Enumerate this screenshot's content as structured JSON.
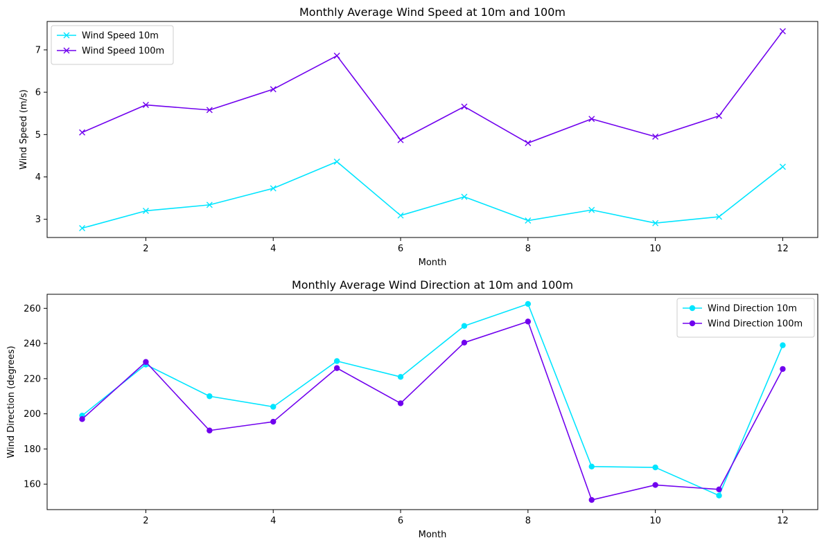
{
  "chart_data": [
    {
      "type": "line",
      "title": "Monthly Average Wind Speed at 10m and 100m",
      "xlabel": "Month",
      "ylabel": "Wind Speed (m/s)",
      "x": [
        1,
        2,
        3,
        4,
        5,
        6,
        7,
        8,
        9,
        10,
        11,
        12
      ],
      "xlim": [
        0.45,
        12.55
      ],
      "ylim": [
        2.57,
        7.67
      ],
      "xticks": [
        2,
        4,
        6,
        8,
        10,
        12
      ],
      "yticks": [
        3,
        4,
        5,
        6,
        7
      ],
      "grid": false,
      "legend_position": "upper-left",
      "series": [
        {
          "name": "Wind Speed 10m",
          "color": "#00e5ff",
          "marker": "x",
          "values": [
            2.79,
            3.2,
            3.34,
            3.73,
            4.36,
            3.09,
            3.53,
            2.97,
            3.22,
            2.91,
            3.06,
            4.24
          ]
        },
        {
          "name": "Wind Speed 100m",
          "color": "#7000ee",
          "marker": "x",
          "values": [
            5.05,
            5.7,
            5.58,
            6.07,
            6.86,
            4.87,
            5.66,
            4.8,
            5.37,
            4.95,
            5.44,
            7.44
          ]
        }
      ]
    },
    {
      "type": "line",
      "title": "Monthly Average Wind Direction at 10m and 100m",
      "xlabel": "Month",
      "ylabel": "Wind Direction (degrees)",
      "x": [
        1,
        2,
        3,
        4,
        5,
        6,
        7,
        8,
        9,
        10,
        11,
        12
      ],
      "xlim": [
        0.45,
        12.55
      ],
      "ylim": [
        145.5,
        268
      ],
      "xticks": [
        2,
        4,
        6,
        8,
        10,
        12
      ],
      "yticks": [
        160,
        180,
        200,
        220,
        240,
        260
      ],
      "grid": false,
      "legend_position": "upper-right",
      "series": [
        {
          "name": "Wind Direction 10m",
          "color": "#00e5ff",
          "marker": "o",
          "values": [
            199,
            228,
            210,
            204,
            230,
            221,
            250,
            262.5,
            170,
            169.5,
            153.5,
            239
          ]
        },
        {
          "name": "Wind Direction 100m",
          "color": "#7000ee",
          "marker": "o",
          "values": [
            197,
            229.5,
            190.5,
            195.5,
            226,
            206,
            240.5,
            252.5,
            151,
            159.5,
            157,
            225.5
          ]
        }
      ]
    }
  ]
}
